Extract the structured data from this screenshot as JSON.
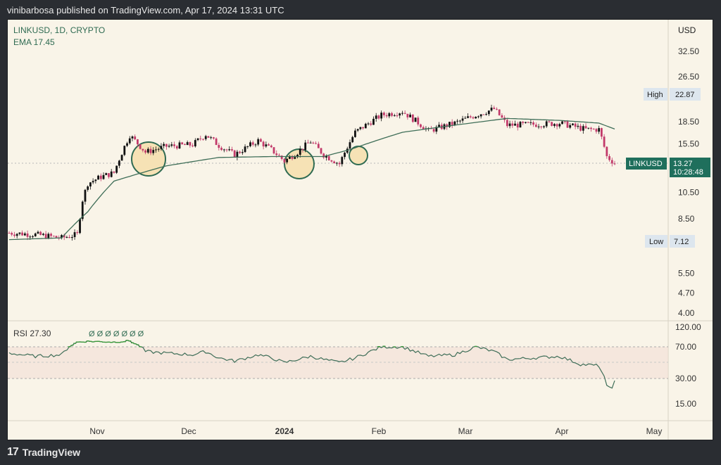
{
  "header": {
    "publisher_text": "vinibarbosa published on TradingView.com, Apr 17, 2024 13:31 UTC"
  },
  "footer": {
    "logo_glyph": "17",
    "brand": "TradingView"
  },
  "legend": {
    "symbol_line": "LINKUSD, 1D, CRYPTO",
    "ema_line": "EMA  17.45"
  },
  "price_axis": {
    "currency": "USD",
    "ticks": [
      "32.50",
      "26.50",
      "18.50",
      "15.50",
      "10.50",
      "8.50",
      "5.50",
      "4.70",
      "4.00"
    ],
    "high_label": "High",
    "high_value": "22.87",
    "low_label": "Low",
    "low_value": "7.12",
    "symbol_tag": "LINKUSD",
    "last_price": "13.27",
    "countdown": "10:28:48"
  },
  "rsi_axis": {
    "ticks": [
      "120.00",
      "70.00",
      "30.00",
      "15.00"
    ]
  },
  "rsi_legend": {
    "label": "RSI  27.30",
    "markers": "Ø Ø Ø Ø Ø Ø Ø"
  },
  "time_axis": {
    "labels": [
      "Nov",
      "Dec",
      "2024",
      "Feb",
      "Mar",
      "Apr",
      "May"
    ]
  },
  "colors": {
    "up": "#111111",
    "down": "#c23a6a",
    "ema": "#3f6e58",
    "rsi_line": "#3f6e58",
    "rsi_overbought": "#3b9b3b",
    "circle": "#2f6b52",
    "circle_fill": "#f6e2b5",
    "badge": "#1f6f5c"
  },
  "chart_data": [
    {
      "type": "candlestick",
      "title": "LINKUSD, 1D, CRYPTO",
      "y_scale": "log",
      "ylim": [
        3.7,
        40
      ],
      "x_labels": [
        "Nov",
        "Dec",
        "2024",
        "Feb",
        "Mar",
        "Apr",
        "May"
      ],
      "series": [
        {
          "name": "LINKUSD",
          "close_path": [
            [
              0,
              7.6
            ],
            [
              10,
              7.5
            ],
            [
              20,
              7.3
            ],
            [
              26,
              7.5
            ],
            [
              28,
              9.9
            ],
            [
              30,
              11.3
            ],
            [
              35,
              11.9
            ],
            [
              40,
              12.3
            ],
            [
              46,
              16.6
            ],
            [
              52,
              14.5
            ],
            [
              60,
              15.2
            ],
            [
              70,
              15.4
            ],
            [
              75,
              16.7
            ],
            [
              80,
              15.3
            ],
            [
              86,
              14.2
            ],
            [
              95,
              15.9
            ],
            [
              100,
              14.8
            ],
            [
              105,
              13.5
            ],
            [
              110,
              14.5
            ],
            [
              115,
              15.8
            ],
            [
              120,
              14.2
            ],
            [
              126,
              13.2
            ],
            [
              132,
              17.0
            ],
            [
              142,
              19.5
            ],
            [
              150,
              20.1
            ],
            [
              160,
              17.2
            ],
            [
              170,
              18.3
            ],
            [
              178,
              19.5
            ],
            [
              185,
              20.5
            ],
            [
              190,
              18.0
            ],
            [
              200,
              18.1
            ],
            [
              210,
              18.3
            ],
            [
              220,
              17.4
            ],
            [
              225,
              17.4
            ],
            [
              228,
              14.0
            ],
            [
              231,
              13.27
            ]
          ]
        },
        {
          "name": "EMA",
          "path": [
            [
              0,
              7.2
            ],
            [
              20,
              7.3
            ],
            [
              30,
              9.0
            ],
            [
              40,
              11.5
            ],
            [
              60,
              13.0
            ],
            [
              80,
              13.9
            ],
            [
              100,
              14.0
            ],
            [
              120,
              14.0
            ],
            [
              130,
              14.8
            ],
            [
              150,
              17.0
            ],
            [
              170,
              18.0
            ],
            [
              190,
              19.0
            ],
            [
              210,
              18.7
            ],
            [
              225,
              18.3
            ],
            [
              231,
              17.45
            ]
          ]
        }
      ],
      "high": 22.87,
      "low": 7.12,
      "last": 13.27,
      "ema_value": 17.45
    },
    {
      "type": "line",
      "title": "RSI  27.30",
      "ylim": [
        10,
        130
      ],
      "series": [
        {
          "name": "RSI",
          "path": [
            [
              0,
              62
            ],
            [
              10,
              58
            ],
            [
              20,
              60
            ],
            [
              26,
              82
            ],
            [
              30,
              84
            ],
            [
              40,
              82
            ],
            [
              46,
              85
            ],
            [
              52,
              64
            ],
            [
              60,
              62
            ],
            [
              70,
              60
            ],
            [
              75,
              64
            ],
            [
              80,
              56
            ],
            [
              86,
              52
            ],
            [
              95,
              60
            ],
            [
              100,
              56
            ],
            [
              105,
              50
            ],
            [
              110,
              54
            ],
            [
              115,
              58
            ],
            [
              120,
              54
            ],
            [
              126,
              50
            ],
            [
              132,
              56
            ],
            [
              142,
              70
            ],
            [
              150,
              70
            ],
            [
              160,
              58
            ],
            [
              170,
              60
            ],
            [
              178,
              70
            ],
            [
              185,
              64
            ],
            [
              190,
              54
            ],
            [
              200,
              56
            ],
            [
              210,
              58
            ],
            [
              218,
              48
            ],
            [
              225,
              46
            ],
            [
              228,
              24
            ],
            [
              231,
              27.3
            ]
          ]
        }
      ],
      "bands": [
        30,
        70
      ]
    }
  ]
}
